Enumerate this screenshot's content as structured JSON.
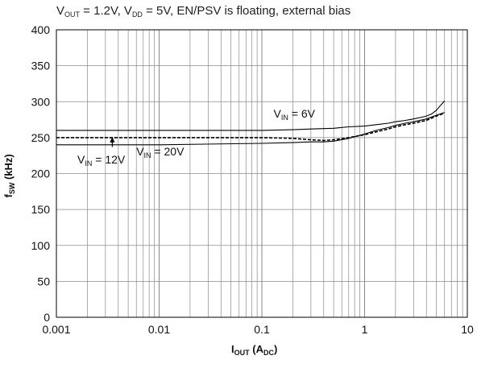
{
  "chart_data": {
    "type": "line",
    "subtitle_parts": [
      {
        "t": "V"
      },
      {
        "t": "OUT",
        "sub": true
      },
      {
        "t": " = 1.2V, V"
      },
      {
        "t": "DD",
        "sub": true
      },
      {
        "t": " = 5V, EN/PSV is floating, external bias"
      }
    ],
    "xlabel_parts": [
      {
        "t": "I"
      },
      {
        "t": "OUT",
        "sub": true
      },
      {
        "t": " (A"
      },
      {
        "t": "DC",
        "sub": true
      },
      {
        "t": ")"
      }
    ],
    "ylabel_parts": [
      {
        "t": "f"
      },
      {
        "t": "SW",
        "sub": true
      },
      {
        "t": " (kHz)"
      }
    ],
    "x_scale": "log",
    "xlim": [
      0.001,
      10
    ],
    "ylim": [
      0,
      400
    ],
    "x_ticks": [
      {
        "v": 0.001,
        "label": "0.001"
      },
      {
        "v": 0.01,
        "label": "0.01"
      },
      {
        "v": 0.1,
        "label": "0.1"
      },
      {
        "v": 1,
        "label": "1"
      },
      {
        "v": 10,
        "label": "10"
      }
    ],
    "y_ticks": [
      {
        "v": 0,
        "label": "0"
      },
      {
        "v": 50,
        "label": "50"
      },
      {
        "v": 100,
        "label": "100"
      },
      {
        "v": 150,
        "label": "150"
      },
      {
        "v": 200,
        "label": "200"
      },
      {
        "v": 250,
        "label": "250"
      },
      {
        "v": 300,
        "label": "300"
      },
      {
        "v": 350,
        "label": "350"
      },
      {
        "v": 400,
        "label": "400"
      }
    ],
    "grid": true,
    "series": [
      {
        "id": "vin-6v",
        "style": "solid",
        "x": [
          0.001,
          0.01,
          0.1,
          0.2,
          0.3,
          0.5,
          0.7,
          1.0,
          1.3,
          1.7,
          2.0,
          2.5,
          3.0,
          3.5,
          4.0,
          4.5,
          5.0,
          5.5,
          6.0
        ],
        "y": [
          260,
          260,
          260,
          261,
          262,
          263,
          265,
          266,
          268,
          270,
          272,
          274,
          276,
          278,
          280,
          283,
          288,
          295,
          301
        ]
      },
      {
        "id": "vin-12v",
        "style": "dashed",
        "x": [
          0.001,
          0.01,
          0.1,
          0.2,
          0.3,
          0.4,
          0.5,
          0.7,
          1.0,
          1.3,
          1.7,
          2.0,
          2.5,
          3.0,
          4.0,
          5.0,
          6.0
        ],
        "y": [
          250,
          250,
          250,
          249,
          247,
          246,
          247,
          250,
          254,
          258,
          262,
          265,
          268,
          270,
          274,
          280,
          284
        ]
      },
      {
        "id": "vin-20v",
        "style": "solid",
        "x": [
          0.001,
          0.01,
          0.1,
          0.2,
          0.3,
          0.4,
          0.5,
          0.7,
          1.0,
          1.3,
          1.7,
          2.0,
          2.5,
          3.0,
          4.0,
          5.0,
          6.0
        ],
        "y": [
          240,
          240,
          242,
          243,
          244,
          244,
          245,
          249,
          255,
          260,
          264,
          267,
          270,
          272,
          276,
          281,
          285
        ]
      }
    ],
    "annotations": [
      {
        "id": "label-vin-6v",
        "parts": [
          {
            "t": "V"
          },
          {
            "t": "IN",
            "sub": true
          },
          {
            "t": " = 6V"
          }
        ],
        "x": 0.13,
        "y": 278
      },
      {
        "id": "label-vin-20v",
        "parts": [
          {
            "t": "V"
          },
          {
            "t": "IN",
            "sub": true
          },
          {
            "t": " = 20V"
          }
        ],
        "x": 0.006,
        "y": 225
      },
      {
        "id": "label-vin-12v",
        "parts": [
          {
            "t": "V"
          },
          {
            "t": "IN",
            "sub": true
          },
          {
            "t": " = 12V"
          }
        ],
        "x": 0.0016,
        "y": 214
      }
    ],
    "arrow": {
      "id": "arrow-vin-12v",
      "x": 0.0035,
      "y_from": 237,
      "y_to": 250
    }
  }
}
